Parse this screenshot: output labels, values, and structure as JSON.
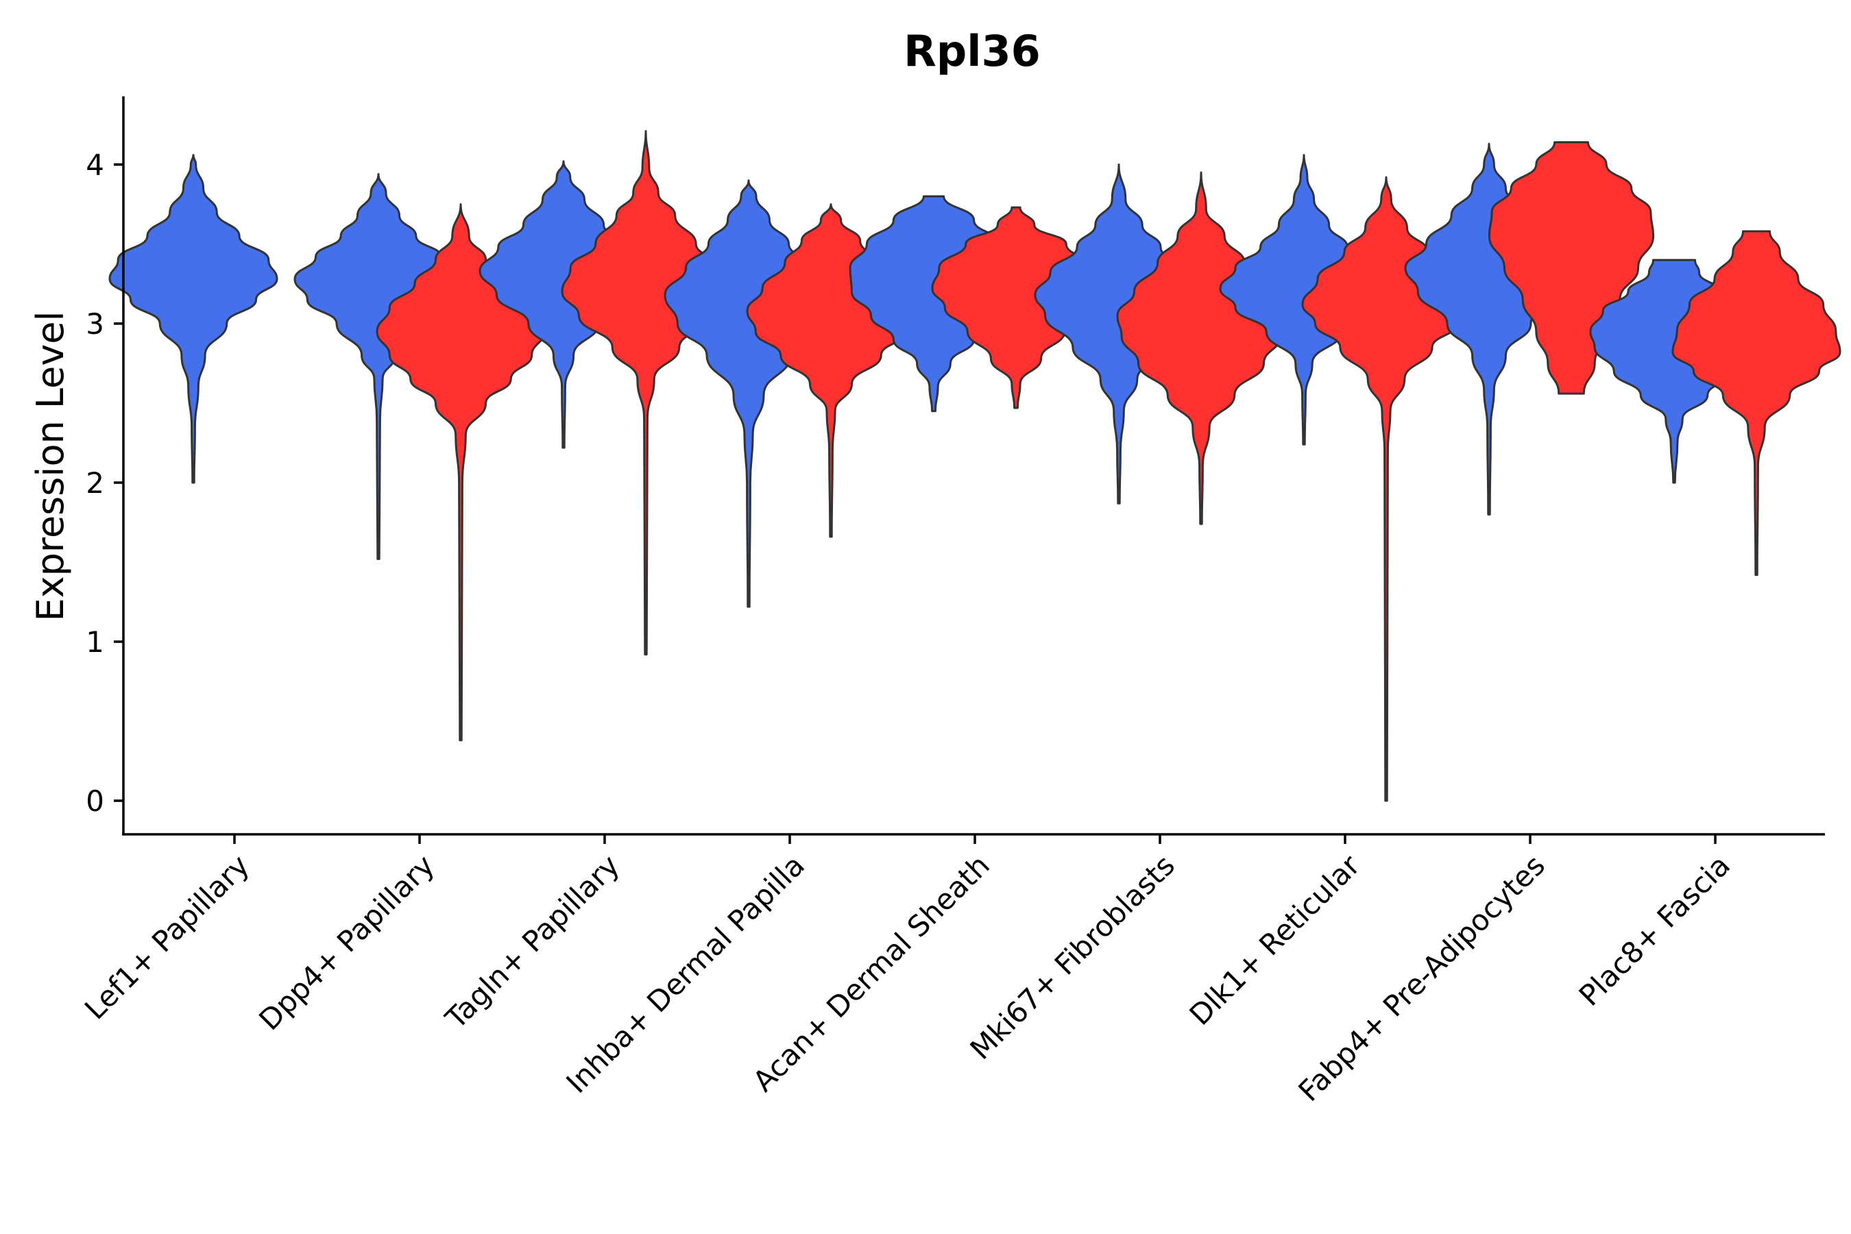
{
  "chart_data": {
    "type": "violin",
    "title": "Rpl36",
    "xlabel": "",
    "ylabel": "Expression Level",
    "ylim": [
      -0.21,
      4.42
    ],
    "yticks": [
      0,
      1,
      2,
      3,
      4
    ],
    "grid": false,
    "legend": "none",
    "colors": {
      "group_a": "#4470EB",
      "group_b": "#FF3030",
      "outline": "#333333"
    },
    "categories": [
      "Lef1+ Papillary",
      "Dpp4+ Papillary",
      "Tagln+ Papillary",
      "Inhba+ Dermal Papilla",
      "Acan+ Dermal Sheath",
      "Mki67+ Fibroblasts",
      "Dlk1+ Reticular",
      "Fabp4+ Pre-Adipocytes",
      "Plac8+ Fascia"
    ],
    "violins": [
      {
        "category": 0,
        "group": "a",
        "min": 2.0,
        "max": 4.06,
        "profile": [
          [
            2.0,
            0.01
          ],
          [
            2.35,
            0.02
          ],
          [
            2.6,
            0.06
          ],
          [
            2.8,
            0.14
          ],
          [
            3.0,
            0.4
          ],
          [
            3.15,
            0.75
          ],
          [
            3.28,
            1.0
          ],
          [
            3.4,
            0.9
          ],
          [
            3.55,
            0.55
          ],
          [
            3.7,
            0.28
          ],
          [
            3.85,
            0.12
          ],
          [
            4.0,
            0.03
          ],
          [
            4.06,
            0.0
          ]
        ]
      },
      {
        "category": 1,
        "group": "a",
        "min": 1.52,
        "max": 3.94,
        "profile": [
          [
            1.52,
            0.01
          ],
          [
            2.4,
            0.02
          ],
          [
            2.65,
            0.05
          ],
          [
            2.8,
            0.2
          ],
          [
            3.0,
            0.5
          ],
          [
            3.15,
            0.85
          ],
          [
            3.28,
            1.0
          ],
          [
            3.42,
            0.75
          ],
          [
            3.55,
            0.45
          ],
          [
            3.68,
            0.25
          ],
          [
            3.82,
            0.09
          ],
          [
            3.94,
            0.0
          ]
        ]
      },
      {
        "category": 1,
        "group": "b",
        "min": 0.38,
        "max": 3.75,
        "profile": [
          [
            0.38,
            0.01
          ],
          [
            2.0,
            0.02
          ],
          [
            2.3,
            0.06
          ],
          [
            2.5,
            0.3
          ],
          [
            2.65,
            0.6
          ],
          [
            2.8,
            0.85
          ],
          [
            2.95,
            1.0
          ],
          [
            3.1,
            0.85
          ],
          [
            3.25,
            0.55
          ],
          [
            3.4,
            0.3
          ],
          [
            3.55,
            0.1
          ],
          [
            3.75,
            0.0
          ]
        ]
      },
      {
        "category": 2,
        "group": "a",
        "min": 2.22,
        "max": 4.02,
        "profile": [
          [
            2.22,
            0.01
          ],
          [
            2.6,
            0.02
          ],
          [
            2.8,
            0.12
          ],
          [
            3.0,
            0.42
          ],
          [
            3.18,
            0.8
          ],
          [
            3.33,
            1.0
          ],
          [
            3.48,
            0.78
          ],
          [
            3.62,
            0.48
          ],
          [
            3.78,
            0.25
          ],
          [
            3.92,
            0.08
          ],
          [
            4.02,
            0.0
          ]
        ]
      },
      {
        "category": 2,
        "group": "b",
        "min": 0.92,
        "max": 4.21,
        "profile": [
          [
            0.92,
            0.01
          ],
          [
            2.4,
            0.02
          ],
          [
            2.65,
            0.1
          ],
          [
            2.85,
            0.4
          ],
          [
            3.05,
            0.8
          ],
          [
            3.2,
            1.0
          ],
          [
            3.35,
            0.9
          ],
          [
            3.5,
            0.6
          ],
          [
            3.68,
            0.35
          ],
          [
            3.82,
            0.15
          ],
          [
            3.98,
            0.04
          ],
          [
            4.21,
            0.0
          ]
        ]
      },
      {
        "category": 3,
        "group": "a",
        "min": 1.22,
        "max": 3.9,
        "profile": [
          [
            1.22,
            0.01
          ],
          [
            2.0,
            0.02
          ],
          [
            2.3,
            0.05
          ],
          [
            2.55,
            0.18
          ],
          [
            2.8,
            0.5
          ],
          [
            3.0,
            0.85
          ],
          [
            3.18,
            1.0
          ],
          [
            3.35,
            0.75
          ],
          [
            3.5,
            0.48
          ],
          [
            3.65,
            0.25
          ],
          [
            3.8,
            0.09
          ],
          [
            3.9,
            0.0
          ]
        ]
      },
      {
        "category": 3,
        "group": "b",
        "min": 1.66,
        "max": 3.75,
        "profile": [
          [
            1.66,
            0.01
          ],
          [
            2.2,
            0.02
          ],
          [
            2.45,
            0.05
          ],
          [
            2.62,
            0.25
          ],
          [
            2.8,
            0.6
          ],
          [
            2.95,
            0.9
          ],
          [
            3.08,
            1.0
          ],
          [
            3.22,
            0.82
          ],
          [
            3.38,
            0.55
          ],
          [
            3.52,
            0.35
          ],
          [
            3.65,
            0.12
          ],
          [
            3.75,
            0.0
          ]
        ]
      },
      {
        "category": 4,
        "group": "a",
        "min": 2.45,
        "max": 3.8,
        "profile": [
          [
            2.45,
            0.02
          ],
          [
            2.6,
            0.05
          ],
          [
            2.75,
            0.2
          ],
          [
            2.9,
            0.48
          ],
          [
            3.05,
            0.75
          ],
          [
            3.2,
            0.98
          ],
          [
            3.35,
            1.0
          ],
          [
            3.5,
            0.8
          ],
          [
            3.65,
            0.48
          ],
          [
            3.8,
            0.12
          ]
        ]
      },
      {
        "category": 4,
        "group": "b",
        "min": 2.47,
        "max": 3.73,
        "profile": [
          [
            2.47,
            0.02
          ],
          [
            2.62,
            0.05
          ],
          [
            2.78,
            0.3
          ],
          [
            2.95,
            0.58
          ],
          [
            3.1,
            0.85
          ],
          [
            3.22,
            1.0
          ],
          [
            3.35,
            0.92
          ],
          [
            3.5,
            0.6
          ],
          [
            3.62,
            0.22
          ],
          [
            3.73,
            0.05
          ]
        ]
      },
      {
        "category": 5,
        "group": "a",
        "min": 1.87,
        "max": 4.0,
        "profile": [
          [
            1.87,
            0.01
          ],
          [
            2.2,
            0.02
          ],
          [
            2.45,
            0.06
          ],
          [
            2.65,
            0.22
          ],
          [
            2.85,
            0.55
          ],
          [
            3.05,
            0.88
          ],
          [
            3.18,
            1.0
          ],
          [
            3.32,
            0.82
          ],
          [
            3.48,
            0.5
          ],
          [
            3.62,
            0.28
          ],
          [
            3.78,
            0.08
          ],
          [
            4.0,
            0.0
          ]
        ]
      },
      {
        "category": 5,
        "group": "b",
        "min": 1.74,
        "max": 3.95,
        "profile": [
          [
            1.74,
            0.01
          ],
          [
            2.1,
            0.02
          ],
          [
            2.35,
            0.1
          ],
          [
            2.55,
            0.4
          ],
          [
            2.75,
            0.75
          ],
          [
            2.92,
            0.95
          ],
          [
            3.05,
            1.0
          ],
          [
            3.2,
            0.8
          ],
          [
            3.38,
            0.52
          ],
          [
            3.55,
            0.28
          ],
          [
            3.72,
            0.06
          ],
          [
            3.95,
            0.0
          ]
        ]
      },
      {
        "category": 6,
        "group": "a",
        "min": 2.24,
        "max": 4.06,
        "profile": [
          [
            2.24,
            0.01
          ],
          [
            2.55,
            0.02
          ],
          [
            2.75,
            0.1
          ],
          [
            2.95,
            0.45
          ],
          [
            3.1,
            0.82
          ],
          [
            3.22,
            1.0
          ],
          [
            3.35,
            0.82
          ],
          [
            3.48,
            0.52
          ],
          [
            3.62,
            0.3
          ],
          [
            3.78,
            0.12
          ],
          [
            3.92,
            0.04
          ],
          [
            4.06,
            0.0
          ]
        ]
      },
      {
        "category": 6,
        "group": "b",
        "min": 0.0,
        "max": 3.92,
        "profile": [
          [
            0.0,
            0.01
          ],
          [
            2.2,
            0.02
          ],
          [
            2.45,
            0.05
          ],
          [
            2.65,
            0.22
          ],
          [
            2.85,
            0.55
          ],
          [
            3.0,
            0.85
          ],
          [
            3.12,
            1.0
          ],
          [
            3.28,
            0.82
          ],
          [
            3.45,
            0.5
          ],
          [
            3.6,
            0.25
          ],
          [
            3.78,
            0.06
          ],
          [
            3.92,
            0.0
          ]
        ]
      },
      {
        "category": 7,
        "group": "a",
        "min": 1.8,
        "max": 4.13,
        "profile": [
          [
            1.8,
            0.01
          ],
          [
            2.35,
            0.02
          ],
          [
            2.58,
            0.06
          ],
          [
            2.8,
            0.2
          ],
          [
            3.0,
            0.5
          ],
          [
            3.2,
            0.85
          ],
          [
            3.35,
            1.0
          ],
          [
            3.5,
            0.75
          ],
          [
            3.68,
            0.45
          ],
          [
            3.85,
            0.2
          ],
          [
            4.0,
            0.06
          ],
          [
            4.13,
            0.0
          ]
        ]
      },
      {
        "category": 7,
        "group": "b",
        "min": 2.56,
        "max": 4.14,
        "profile": [
          [
            2.56,
            0.15
          ],
          [
            2.75,
            0.28
          ],
          [
            2.95,
            0.42
          ],
          [
            3.15,
            0.58
          ],
          [
            3.35,
            0.8
          ],
          [
            3.55,
            0.98
          ],
          [
            3.7,
            0.95
          ],
          [
            3.85,
            0.72
          ],
          [
            4.0,
            0.42
          ],
          [
            4.14,
            0.2
          ]
        ]
      },
      {
        "category": 8,
        "group": "a",
        "min": 2.0,
        "max": 3.4,
        "profile": [
          [
            2.0,
            0.01
          ],
          [
            2.25,
            0.04
          ],
          [
            2.4,
            0.1
          ],
          [
            2.55,
            0.4
          ],
          [
            2.7,
            0.72
          ],
          [
            2.85,
            0.95
          ],
          [
            2.95,
            1.0
          ],
          [
            3.08,
            0.85
          ],
          [
            3.2,
            0.55
          ],
          [
            3.32,
            0.3
          ],
          [
            3.4,
            0.25
          ]
        ]
      },
      {
        "category": 8,
        "group": "b",
        "min": 1.42,
        "max": 3.58,
        "profile": [
          [
            1.42,
            0.01
          ],
          [
            2.1,
            0.02
          ],
          [
            2.35,
            0.1
          ],
          [
            2.55,
            0.4
          ],
          [
            2.7,
            0.75
          ],
          [
            2.82,
            1.0
          ],
          [
            2.95,
            0.95
          ],
          [
            3.12,
            0.8
          ],
          [
            3.28,
            0.5
          ],
          [
            3.45,
            0.28
          ],
          [
            3.58,
            0.16
          ]
        ]
      }
    ]
  }
}
